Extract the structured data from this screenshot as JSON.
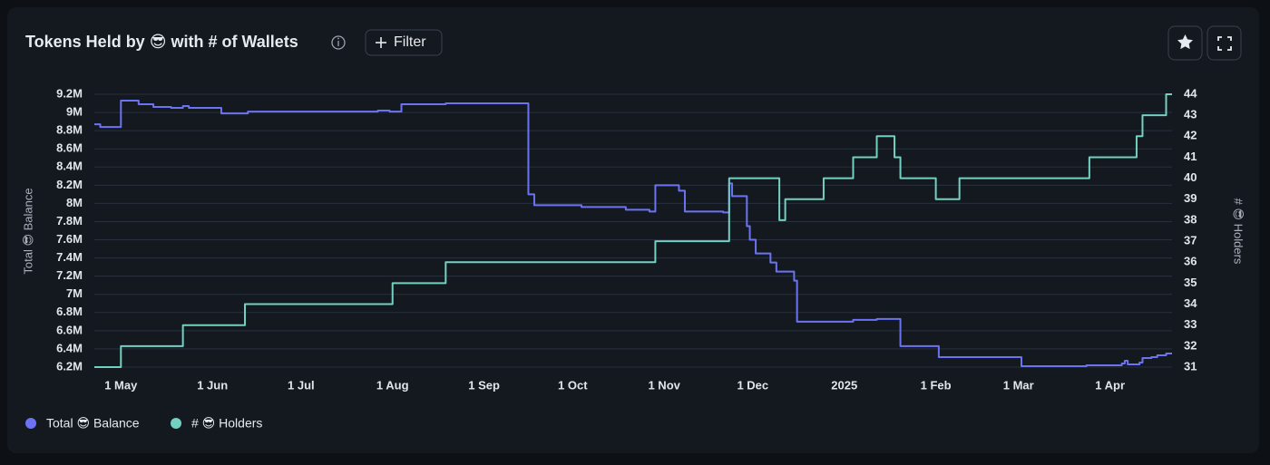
{
  "chart_data": {
    "type": "line",
    "title": "Tokens Held by 😎 with # of Wallets",
    "filter_button": "Filter",
    "y_label": "Total 😎 Balance",
    "y2_label": "# 😎 Holders",
    "step": true,
    "grid": true,
    "x": [
      "2024-04-22",
      "2024-04-24",
      "2024-05-01",
      "2024-05-07",
      "2024-05-12",
      "2024-05-18",
      "2024-05-22",
      "2024-05-24",
      "2024-06-04",
      "2024-06-12",
      "2024-06-13",
      "2024-07-27",
      "2024-07-31",
      "2024-08-01",
      "2024-08-04",
      "2024-08-19",
      "2024-09-16",
      "2024-09-18",
      "2024-10-04",
      "2024-10-19",
      "2024-10-27",
      "2024-10-29",
      "2024-11-06",
      "2024-11-08",
      "2024-11-21",
      "2024-11-23",
      "2024-11-24",
      "2024-11-29",
      "2024-11-30",
      "2024-12-02",
      "2024-12-07",
      "2024-12-09",
      "2024-12-10",
      "2024-12-12",
      "2024-12-15",
      "2024-12-16",
      "2024-12-25",
      "2025-01-04",
      "2025-01-12",
      "2025-01-18",
      "2025-01-20",
      "2025-02-01",
      "2025-02-02",
      "2025-02-09",
      "2025-03-02",
      "2025-03-24",
      "2025-03-25",
      "2025-04-05",
      "2025-04-06",
      "2025-04-07",
      "2025-04-10",
      "2025-04-11",
      "2025-04-12",
      "2025-04-15",
      "2025-04-17",
      "2025-04-20",
      "2025-04-22"
    ],
    "series": [
      {
        "name": "Total 😎 Balance",
        "color": "#6c73f2",
        "values": [
          8870000,
          8840000,
          9130000,
          9090000,
          9060000,
          9050000,
          9070000,
          9050000,
          8990000,
          8990000,
          9010000,
          9020000,
          9010000,
          9010000,
          9090000,
          9100000,
          8100000,
          7980000,
          7960000,
          7930000,
          7910000,
          8200000,
          8140000,
          7910000,
          7900000,
          8220000,
          8080000,
          7750000,
          7600000,
          7450000,
          7350000,
          7250000,
          7250000,
          7250000,
          7150000,
          6700000,
          6700000,
          6720000,
          6730000,
          6730000,
          6430000,
          6430000,
          6310000,
          6310000,
          6210000,
          6220000,
          6220000,
          6240000,
          6270000,
          6230000,
          6230000,
          6250000,
          6300000,
          6310000,
          6330000,
          6350000,
          6350000
        ]
      },
      {
        "name": "# 😎 Holders",
        "color": "#72d1c1",
        "axis": "y2",
        "values": [
          31,
          31,
          32,
          32,
          32,
          32,
          33,
          33,
          33,
          34,
          34,
          34,
          34,
          35,
          35,
          36,
          36,
          36,
          36,
          36,
          36,
          37,
          37,
          37,
          37,
          40,
          40,
          40,
          40,
          40,
          40,
          40,
          38,
          39,
          39,
          39,
          40,
          41,
          42,
          41,
          40,
          39,
          39,
          40,
          40,
          40,
          41,
          41,
          41,
          41,
          42,
          42,
          43,
          43,
          43,
          44,
          44
        ]
      }
    ],
    "xlim": [
      "2024-04-22",
      "2025-04-22"
    ],
    "xticks": [
      {
        "value": "2024-05-01",
        "label": "1 May"
      },
      {
        "value": "2024-06-01",
        "label": "1 Jun"
      },
      {
        "value": "2024-07-01",
        "label": "1 Jul"
      },
      {
        "value": "2024-08-01",
        "label": "1 Aug"
      },
      {
        "value": "2024-09-01",
        "label": "1 Sep"
      },
      {
        "value": "2024-10-01",
        "label": "1 Oct"
      },
      {
        "value": "2024-11-01",
        "label": "1 Nov"
      },
      {
        "value": "2024-12-01",
        "label": "1 Dec"
      },
      {
        "value": "2025-01-01",
        "label": "2025"
      },
      {
        "value": "2025-02-01",
        "label": "1 Feb"
      },
      {
        "value": "2025-03-01",
        "label": "1 Mar"
      },
      {
        "value": "2025-04-01",
        "label": "1 Apr"
      }
    ],
    "ylim": [
      6200000,
      9200000
    ],
    "yticks": [
      {
        "value": 6200000,
        "label": "6.2M"
      },
      {
        "value": 6400000,
        "label": "6.4M"
      },
      {
        "value": 6600000,
        "label": "6.6M"
      },
      {
        "value": 6800000,
        "label": "6.8M"
      },
      {
        "value": 7000000,
        "label": "7M"
      },
      {
        "value": 7200000,
        "label": "7.2M"
      },
      {
        "value": 7400000,
        "label": "7.4M"
      },
      {
        "value": 7600000,
        "label": "7.6M"
      },
      {
        "value": 7800000,
        "label": "7.8M"
      },
      {
        "value": 8000000,
        "label": "8M"
      },
      {
        "value": 8200000,
        "label": "8.2M"
      },
      {
        "value": 8400000,
        "label": "8.4M"
      },
      {
        "value": 8600000,
        "label": "8.6M"
      },
      {
        "value": 8800000,
        "label": "8.8M"
      },
      {
        "value": 9000000,
        "label": "9M"
      },
      {
        "value": 9200000,
        "label": "9.2M"
      }
    ],
    "y2lim": [
      31,
      44
    ],
    "y2ticks": [
      31,
      32,
      33,
      34,
      35,
      36,
      37,
      38,
      39,
      40,
      41,
      42,
      43,
      44
    ]
  }
}
